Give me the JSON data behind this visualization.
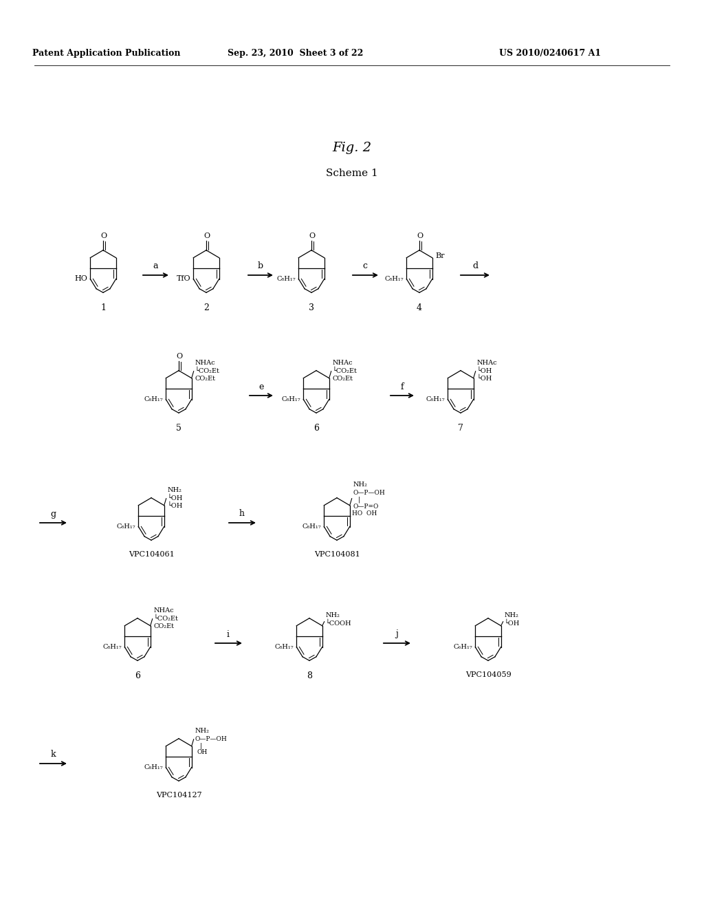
{
  "background_color": "#ffffff",
  "header_left": "Patent Application Publication",
  "header_mid": "Sep. 23, 2010  Sheet 3 of 22",
  "header_right": "US 2010/0240617 A1",
  "fig_label": "Fig. 2",
  "scheme_label": "Scheme 1"
}
